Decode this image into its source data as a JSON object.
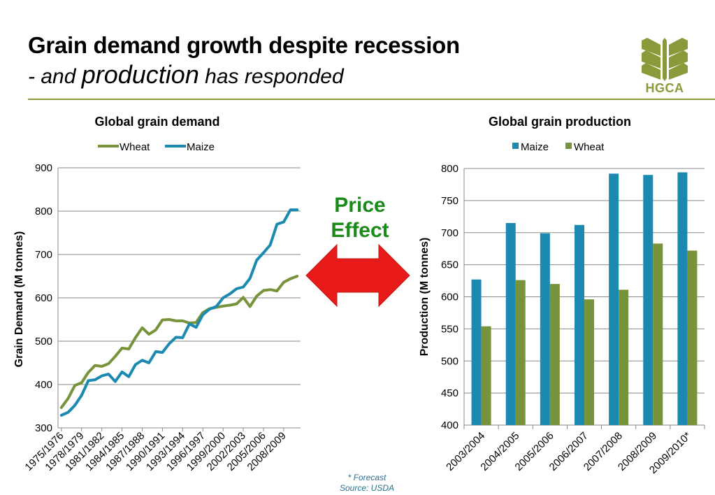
{
  "slide": {
    "title_line1": "Grain demand growth despite recession",
    "title_line2_prefix": "- and ",
    "title_line2_emph": "production",
    "title_line2_suffix": " has responded",
    "logo_text": "HGCA",
    "logo_color": "#8a9a3a",
    "price_effect_line1": "Price",
    "price_effect_line2": "Effect",
    "price_effect_color": "#1a8a1a",
    "arrow_color": "#e81a1a",
    "footnote_line1": "* Forecast",
    "footnote_line2": "Source: USDA"
  },
  "chart_data": [
    {
      "type": "line",
      "title": "Global grain demand",
      "ylabel": "Grain Demand (M tonnes)",
      "xlabel": "",
      "ylim": [
        300,
        900
      ],
      "yticks": [
        300,
        400,
        500,
        600,
        700,
        800,
        900
      ],
      "grid": true,
      "legend": "top",
      "tick_labels": [
        "1975/1976",
        "1978/1979",
        "1981/1982",
        "1984/1985",
        "1987/1988",
        "1990/1991",
        "1993/1994",
        "1996/1997",
        "1999/2000",
        "2002/2003",
        "2005/2006",
        "2008/2009"
      ],
      "tick_every": 3,
      "x_count": 36,
      "series": [
        {
          "name": "Wheat",
          "color": "#77933c",
          "values": [
            347,
            368,
            398,
            404,
            428,
            444,
            442,
            448,
            465,
            484,
            482,
            508,
            531,
            516,
            526,
            549,
            550,
            547,
            547,
            542,
            543,
            566,
            575,
            578,
            581,
            583,
            586,
            601,
            580,
            604,
            617,
            619,
            616,
            636,
            644,
            650
          ]
        },
        {
          "name": "Maize",
          "color": "#1c8ab0",
          "values": [
            329,
            336,
            352,
            375,
            409,
            411,
            420,
            424,
            407,
            429,
            418,
            446,
            456,
            450,
            476,
            474,
            494,
            509,
            508,
            540,
            532,
            561,
            574,
            580,
            600,
            609,
            621,
            625,
            645,
            687,
            704,
            722,
            770,
            775,
            803,
            803
          ]
        }
      ]
    },
    {
      "type": "bar",
      "title": "Global grain production",
      "ylabel": "Production (M tonnes)",
      "xlabel": "",
      "ylim": [
        400,
        800
      ],
      "yticks": [
        400,
        450,
        500,
        550,
        600,
        650,
        700,
        750,
        800
      ],
      "grid": true,
      "legend": "top",
      "categories": [
        "2003/2004",
        "2004/2005",
        "2005/2006",
        "2006/2007",
        "2007/2008",
        "2008/2009",
        "2009/2010*"
      ],
      "series": [
        {
          "name": "Maize",
          "color": "#1c8ab0",
          "values": [
            627,
            715,
            699,
            712,
            792,
            790,
            794
          ]
        },
        {
          "name": "Wheat",
          "color": "#77933c",
          "values": [
            554,
            626,
            620,
            596,
            611,
            683,
            672
          ]
        }
      ]
    }
  ]
}
